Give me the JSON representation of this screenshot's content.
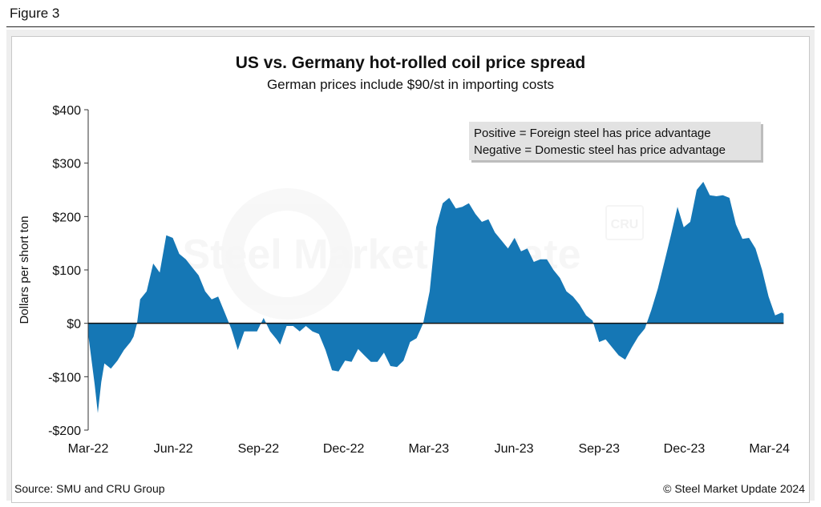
{
  "figure_label": "Figure 3",
  "watermark": {
    "brand": "Steel Market Update",
    "logo": "CRU"
  },
  "footer": {
    "source": "Source: SMU and CRU Group",
    "copyright": "© Steel Market Update 2024"
  },
  "colors": {
    "area": "#1577b5",
    "zero_line": "#111111",
    "panel": "#eeeeee"
  },
  "chart_data": {
    "type": "area",
    "title": "US vs. Germany hot-rolled coil price spread",
    "subtitle": "German prices include $90/st in importing costs",
    "ylabel": "Dollars per short ton",
    "xlabel": "",
    "ylim": [
      -200,
      400
    ],
    "yticks": [
      -200,
      -100,
      0,
      100,
      200,
      300,
      400
    ],
    "ytick_labels": [
      "-$200",
      "-$100",
      "$0",
      "$100",
      "$200",
      "$300",
      "$400"
    ],
    "xlim": [
      0,
      24.8
    ],
    "xticks": [
      0,
      3,
      6,
      9,
      12,
      15,
      18,
      21,
      24
    ],
    "xtick_labels": [
      "Mar-22",
      "Jun-22",
      "Sep-22",
      "Dec-22",
      "Mar-23",
      "Jun-23",
      "Sep-23",
      "Dec-23",
      "Mar-24"
    ],
    "x_unit": "months since Mar-22",
    "legend_note": [
      "Positive = Foreign steel has price advantage",
      "Negative = Domestic steel has price advantage"
    ],
    "legend_position": "top-right",
    "grid": false,
    "series": [
      {
        "name": "US vs. Germany HRC price spread",
        "points": [
          [
            0.0,
            -20
          ],
          [
            0.23,
            -115
          ],
          [
            0.34,
            -168
          ],
          [
            0.46,
            -110
          ],
          [
            0.57,
            -75
          ],
          [
            0.8,
            -85
          ],
          [
            1.03,
            -70
          ],
          [
            1.26,
            -50
          ],
          [
            1.49,
            -35
          ],
          [
            1.6,
            -25
          ],
          [
            1.72,
            0
          ],
          [
            1.83,
            45
          ],
          [
            2.06,
            60
          ],
          [
            2.29,
            112
          ],
          [
            2.52,
            95
          ],
          [
            2.75,
            165
          ],
          [
            2.98,
            160
          ],
          [
            3.21,
            130
          ],
          [
            3.44,
            120
          ],
          [
            3.66,
            105
          ],
          [
            3.89,
            90
          ],
          [
            4.12,
            60
          ],
          [
            4.35,
            45
          ],
          [
            4.58,
            50
          ],
          [
            4.81,
            20
          ],
          [
            5.04,
            -10
          ],
          [
            5.27,
            -50
          ],
          [
            5.5,
            -15
          ],
          [
            5.73,
            -15
          ],
          [
            5.95,
            -15
          ],
          [
            6.18,
            10
          ],
          [
            6.41,
            -15
          ],
          [
            6.64,
            -30
          ],
          [
            6.76,
            -40
          ],
          [
            6.99,
            -5
          ],
          [
            7.22,
            -5
          ],
          [
            7.45,
            -15
          ],
          [
            7.67,
            -5
          ],
          [
            7.9,
            -15
          ],
          [
            8.13,
            -20
          ],
          [
            8.36,
            -50
          ],
          [
            8.59,
            -88
          ],
          [
            8.82,
            -90
          ],
          [
            9.05,
            -70
          ],
          [
            9.28,
            -72
          ],
          [
            9.51,
            -48
          ],
          [
            9.73,
            -60
          ],
          [
            9.96,
            -72
          ],
          [
            10.19,
            -72
          ],
          [
            10.42,
            -55
          ],
          [
            10.65,
            -80
          ],
          [
            10.88,
            -82
          ],
          [
            11.11,
            -70
          ],
          [
            11.34,
            -35
          ],
          [
            11.57,
            -28
          ],
          [
            11.8,
            0
          ],
          [
            12.03,
            60
          ],
          [
            12.26,
            180
          ],
          [
            12.49,
            225
          ],
          [
            12.72,
            235
          ],
          [
            12.95,
            215
          ],
          [
            13.18,
            218
          ],
          [
            13.41,
            225
          ],
          [
            13.64,
            205
          ],
          [
            13.87,
            190
          ],
          [
            14.1,
            195
          ],
          [
            14.33,
            170
          ],
          [
            14.56,
            155
          ],
          [
            14.79,
            140
          ],
          [
            15.02,
            160
          ],
          [
            15.25,
            135
          ],
          [
            15.47,
            140
          ],
          [
            15.7,
            115
          ],
          [
            15.93,
            120
          ],
          [
            16.16,
            120
          ],
          [
            16.39,
            100
          ],
          [
            16.62,
            85
          ],
          [
            16.85,
            60
          ],
          [
            17.08,
            50
          ],
          [
            17.31,
            35
          ],
          [
            17.54,
            15
          ],
          [
            17.77,
            5
          ],
          [
            18.0,
            -35
          ],
          [
            18.23,
            -30
          ],
          [
            18.46,
            -45
          ],
          [
            18.69,
            -60
          ],
          [
            18.92,
            -68
          ],
          [
            19.15,
            -45
          ],
          [
            19.38,
            -25
          ],
          [
            19.61,
            -10
          ],
          [
            19.84,
            25
          ],
          [
            20.07,
            65
          ],
          [
            20.3,
            115
          ],
          [
            20.53,
            165
          ],
          [
            20.76,
            218
          ],
          [
            20.98,
            180
          ],
          [
            21.21,
            190
          ],
          [
            21.44,
            250
          ],
          [
            21.67,
            265
          ],
          [
            21.9,
            240
          ],
          [
            22.13,
            238
          ],
          [
            22.36,
            240
          ],
          [
            22.59,
            235
          ],
          [
            22.82,
            185
          ],
          [
            23.05,
            158
          ],
          [
            23.28,
            160
          ],
          [
            23.51,
            140
          ],
          [
            23.74,
            100
          ],
          [
            23.97,
            50
          ],
          [
            24.2,
            15
          ],
          [
            24.43,
            20
          ],
          [
            24.5,
            18
          ]
        ]
      }
    ]
  }
}
